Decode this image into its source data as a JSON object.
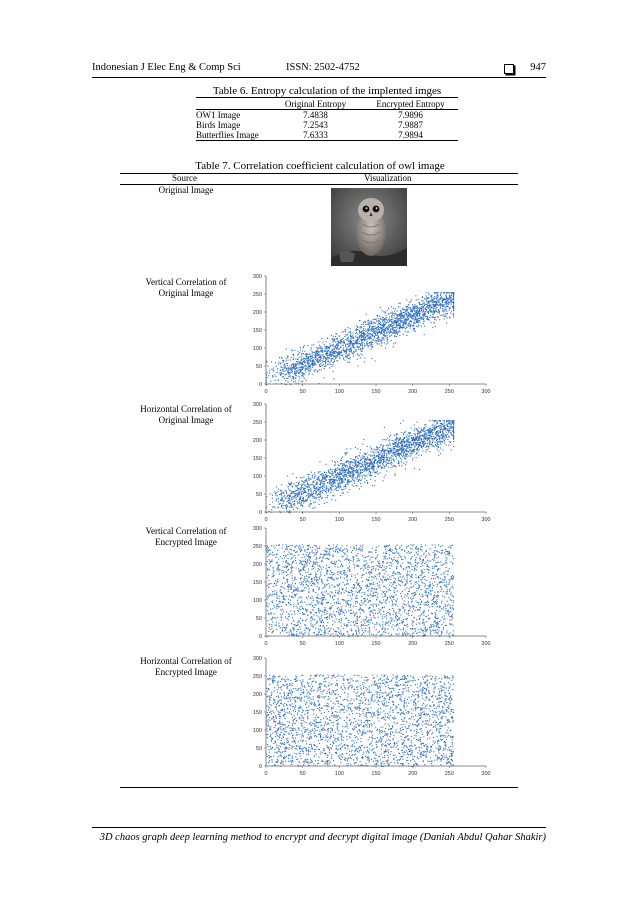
{
  "header": {
    "journal": "Indonesian J Elec Eng & Comp Sci",
    "issn": "ISSN: 2502-4752",
    "page": "947"
  },
  "table6": {
    "caption": "Table 6. Entropy calculation of the implented imges",
    "columns": [
      "",
      "Original Entropy",
      "Encrypted Entropy"
    ],
    "rows": [
      [
        "OW1 Image",
        "7.4838",
        "7.9896"
      ],
      [
        "Birds Image",
        "7.2543",
        "7.9887"
      ],
      [
        "Butterflies Image",
        "7.6333",
        "7.9894"
      ]
    ]
  },
  "table7": {
    "caption": "Table 7. Correlation coefficient calculation of owl image",
    "col_source": "Source",
    "col_visualization": "Visualization",
    "rows": [
      {
        "source": "Original Image"
      },
      {
        "source": "Vertical Correlation of Original Image"
      },
      {
        "source": "Horizontal Correlation of Original Image"
      },
      {
        "source": "Vertical Correlation of Encrypted Image"
      },
      {
        "source": "Horizontal Correlation of Encrypted Image"
      }
    ]
  },
  "chart_data": [
    {
      "type": "scatter",
      "pattern": "correlated",
      "xlim": [
        0,
        300
      ],
      "ylim": [
        0,
        300
      ],
      "xticks": [
        "0",
        "50",
        "100",
        "150",
        "200",
        "250",
        "300"
      ],
      "yticks": [
        "0",
        "50",
        "100",
        "150",
        "200",
        "250",
        "300"
      ],
      "color": "#2f6fc0"
    },
    {
      "type": "scatter",
      "pattern": "correlated",
      "xlim": [
        0,
        300
      ],
      "ylim": [
        0,
        300
      ],
      "xticks": [
        "0",
        "50",
        "100",
        "150",
        "200",
        "250",
        "300"
      ],
      "yticks": [
        "0",
        "50",
        "100",
        "150",
        "200",
        "250",
        "300"
      ],
      "color": "#2f6fc0"
    },
    {
      "type": "scatter",
      "pattern": "uniform",
      "xlim": [
        0,
        300
      ],
      "ylim": [
        0,
        300
      ],
      "xticks": [
        "0",
        "50",
        "100",
        "150",
        "200",
        "250",
        "300"
      ],
      "yticks": [
        "0",
        "50",
        "100",
        "150",
        "200",
        "250",
        "300"
      ],
      "color": "#2f6fc0"
    },
    {
      "type": "scatter",
      "pattern": "uniform",
      "xlim": [
        0,
        300
      ],
      "ylim": [
        0,
        300
      ],
      "xticks": [
        "0",
        "50",
        "100",
        "150",
        "200",
        "250",
        "300"
      ],
      "yticks": [
        "0",
        "50",
        "100",
        "150",
        "200",
        "250",
        "300"
      ],
      "color": "#2f6fc0"
    }
  ],
  "footer": {
    "text": "3D chaos graph deep learning method to encrypt and decrypt digital image (Daniah Abdul Qahar Shakir)"
  }
}
